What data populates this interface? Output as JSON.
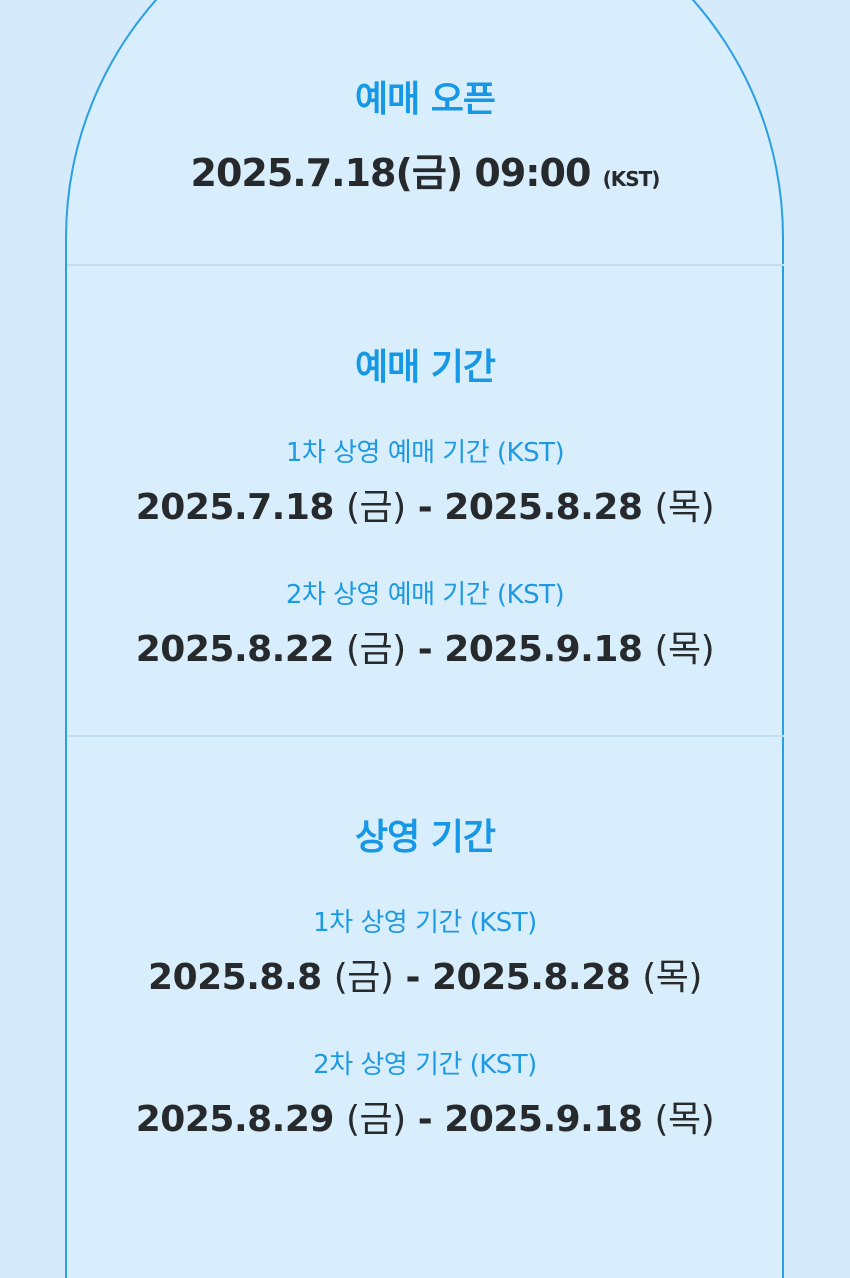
{
  "open": {
    "title": "예매 오픈",
    "datetime": "2025.7.18(금) 09:00",
    "tz": "(KST)"
  },
  "booking": {
    "title": "예매 기간",
    "rounds": [
      {
        "label": "1차 상영 예매 기간 (KST)",
        "start": "2025.7.18",
        "start_day": "(금)",
        "sep": "-",
        "end": "2025.8.28",
        "end_day": "(목)"
      },
      {
        "label": "2차 상영 예매 기간 (KST)",
        "start": "2025.8.22",
        "start_day": "(금)",
        "sep": "-",
        "end": "2025.9.18",
        "end_day": "(목)"
      }
    ]
  },
  "screening": {
    "title": "상영 기간",
    "rounds": [
      {
        "label": "1차 상영 기간 (KST)",
        "start": "2025.8.8",
        "start_day": "(금)",
        "sep": "-",
        "end": "2025.8.28",
        "end_day": "(목)"
      },
      {
        "label": "2차 상영 기간 (KST)",
        "start": "2025.8.29",
        "start_day": "(금)",
        "sep": "-",
        "end": "2025.9.18",
        "end_day": "(목)"
      }
    ]
  },
  "colors": {
    "accent": "#1798e6",
    "text": "#272a2c",
    "background": "#d5ebfb",
    "border": "#2b9fe3"
  }
}
